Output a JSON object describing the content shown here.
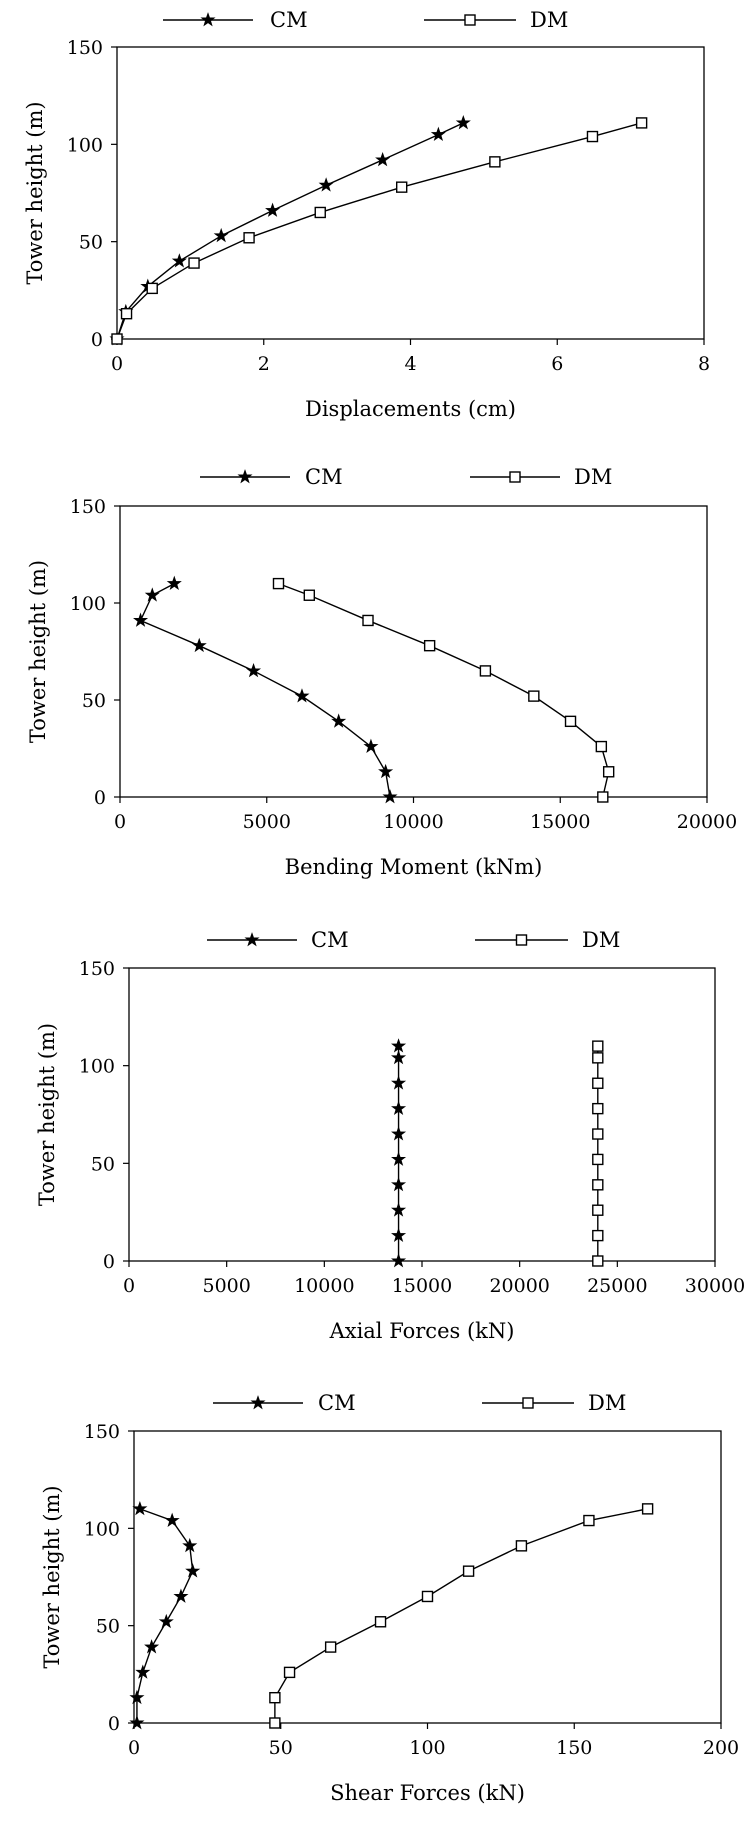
{
  "chart_data": [
    {
      "type": "line",
      "xlabel": "Displacements (cm)",
      "ylabel": "Tower height (m)",
      "xlim": [
        0,
        8
      ],
      "ylim": [
        0,
        150
      ],
      "xticks": [
        0,
        2,
        4,
        6,
        8
      ],
      "yticks": [
        0,
        50,
        100,
        150
      ],
      "legend": "top",
      "series": [
        {
          "name": "CM",
          "marker": "star",
          "x": [
            0,
            0.12,
            0.42,
            0.85,
            1.42,
            2.12,
            2.85,
            3.62,
            4.38,
            4.72
          ],
          "y": [
            0,
            14,
            27,
            40,
            53,
            66,
            79,
            92,
            105,
            111
          ]
        },
        {
          "name": "DM",
          "marker": "square",
          "x": [
            0,
            0.13,
            0.48,
            1.05,
            1.8,
            2.77,
            3.88,
            5.15,
            6.48,
            7.15
          ],
          "y": [
            0,
            13,
            26,
            39,
            52,
            65,
            78,
            91,
            104,
            111
          ]
        }
      ]
    },
    {
      "type": "line",
      "xlabel": "Bending Moment (kNm)",
      "ylabel": "Tower height (m)",
      "xlim": [
        0,
        20000
      ],
      "ylim": [
        0,
        150
      ],
      "xticks": [
        0,
        5000,
        10000,
        15000,
        20000
      ],
      "yticks": [
        0,
        50,
        100,
        150
      ],
      "legend": "top",
      "series": [
        {
          "name": "CM",
          "marker": "star",
          "x": [
            9200,
            9050,
            8550,
            7450,
            6200,
            4550,
            2700,
            700,
            1100,
            1850
          ],
          "y": [
            0,
            13,
            26,
            39,
            52,
            65,
            78,
            91,
            104,
            110
          ]
        },
        {
          "name": "DM",
          "marker": "square",
          "x": [
            16450,
            16650,
            16400,
            15350,
            14100,
            12450,
            10550,
            8450,
            6450,
            5400
          ],
          "y": [
            0,
            13,
            26,
            39,
            52,
            65,
            78,
            91,
            104,
            110
          ]
        }
      ]
    },
    {
      "type": "line",
      "xlabel": "Axial Forces (kN)",
      "ylabel": "Tower height (m)",
      "xlim": [
        0,
        30000
      ],
      "ylim": [
        0,
        150
      ],
      "xticks": [
        0,
        5000,
        10000,
        15000,
        20000,
        25000,
        30000
      ],
      "yticks": [
        0,
        50,
        100,
        150
      ],
      "legend": "top",
      "series": [
        {
          "name": "CM",
          "marker": "star",
          "x": [
            13800,
            13800,
            13800,
            13800,
            13800,
            13800,
            13800,
            13800,
            13800,
            13800
          ],
          "y": [
            0,
            13,
            26,
            39,
            52,
            65,
            78,
            91,
            104,
            110
          ]
        },
        {
          "name": "DM",
          "marker": "square",
          "x": [
            24000,
            24000,
            24000,
            24000,
            24000,
            24000,
            24000,
            24000,
            24000,
            24000
          ],
          "y": [
            0,
            13,
            26,
            39,
            52,
            65,
            78,
            91,
            104,
            110
          ]
        }
      ]
    },
    {
      "type": "line",
      "xlabel": "Shear Forces (kN)",
      "ylabel": "Tower height (m)",
      "xlim": [
        0,
        200
      ],
      "ylim": [
        0,
        150
      ],
      "xticks": [
        0,
        50,
        100,
        150,
        200
      ],
      "yticks": [
        0,
        50,
        100,
        150
      ],
      "legend": "top",
      "series": [
        {
          "name": "CM",
          "marker": "star",
          "x": [
            1,
            1,
            3,
            6,
            11,
            16,
            20,
            19,
            13,
            2
          ],
          "y": [
            0,
            13,
            26,
            39,
            52,
            65,
            78,
            91,
            104,
            110
          ]
        },
        {
          "name": "DM",
          "marker": "square",
          "x": [
            48,
            48,
            53,
            67,
            84,
            100,
            114,
            132,
            155,
            175
          ],
          "y": [
            0,
            13,
            26,
            39,
            52,
            65,
            78,
            91,
            104,
            110
          ]
        }
      ]
    }
  ]
}
